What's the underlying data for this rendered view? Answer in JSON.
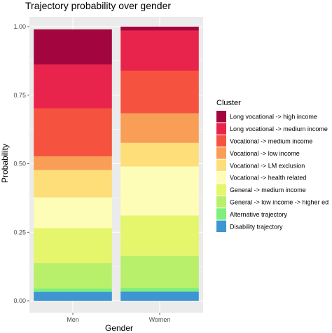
{
  "chart_data": {
    "type": "bar",
    "stacked": true,
    "title": "Trajectory probability over gender",
    "xlabel": "Gender",
    "ylabel": "Probability",
    "categories": [
      "Men",
      "Women"
    ],
    "ylim": [
      0,
      1
    ],
    "yticks": [
      "0.00",
      "0.25",
      "0.50",
      "0.75",
      "1.00"
    ],
    "grid": true,
    "legend_title": "Cluster",
    "legend_position": "right",
    "series": [
      {
        "name": "Disability trajectory",
        "color": "#3d95d2",
        "values": [
          0.033,
          0.034
        ]
      },
      {
        "name": "Alternative trajectory",
        "color": "#7ff07b",
        "values": [
          0.012,
          0.012
        ]
      },
      {
        "name": "General -> low income -> higher ed",
        "color": "#b8f06c",
        "values": [
          0.093,
          0.118
        ]
      },
      {
        "name": "General -> medium income",
        "color": "#e5f56c",
        "values": [
          0.127,
          0.147
        ]
      },
      {
        "name": "Vocational -> health related",
        "color": "#fefdb7",
        "values": [
          0.112,
          0.179
        ]
      },
      {
        "name": "Vocational -> LM exclusion",
        "color": "#fede79",
        "values": [
          0.1,
          0.086
        ]
      },
      {
        "name": "Vocational -> low income",
        "color": "#f99e57",
        "values": [
          0.05,
          0.108
        ]
      },
      {
        "name": "Vocational -> medium income",
        "color": "#f5533f",
        "values": [
          0.175,
          0.155
        ]
      },
      {
        "name": "Long vocational -> medium income",
        "color": "#e9244c",
        "values": [
          0.16,
          0.147
        ]
      },
      {
        "name": "Long vocational -> high income",
        "color": "#a3063e",
        "values": [
          0.128,
          0.014
        ]
      }
    ]
  }
}
